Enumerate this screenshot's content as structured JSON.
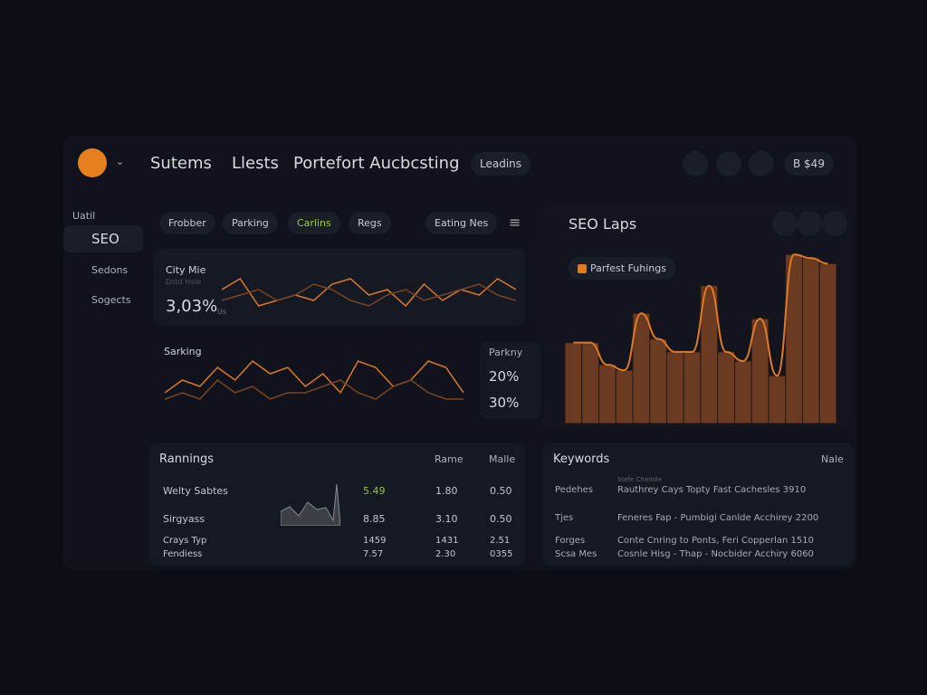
{
  "header": {
    "nav": [
      "Sutems",
      "Llests",
      "Portefort Aucbcsting"
    ],
    "badge": "Leadins",
    "account": "B $49"
  },
  "sidebar": {
    "section": "Uatil",
    "items": [
      "SEO",
      "Sedons",
      "Sogects"
    ]
  },
  "filters": [
    "Frobber",
    "Parking",
    "Carlins",
    "Regs",
    "Eating Nes"
  ],
  "cards": {
    "city": {
      "sub": "Dstd Hole",
      "value": "3,03%",
      "unit": "Us"
    },
    "parkny": {
      "title": "Parkny",
      "values": [
        "20%",
        "30%"
      ]
    }
  },
  "chart_data": [
    {
      "type": "line",
      "title": "City Mie",
      "ylim": [
        0,
        10
      ],
      "series": [
        {
          "color": "#d9792c",
          "values": [
            5,
            7,
            2,
            3,
            4,
            3,
            6,
            7,
            4,
            5,
            2,
            6,
            3,
            5,
            4,
            7,
            5
          ]
        },
        {
          "color": "#7a4522",
          "values": [
            3,
            4,
            5,
            3,
            4,
            6,
            5,
            3,
            2,
            4,
            5,
            3,
            4,
            5,
            6,
            4,
            3
          ]
        }
      ]
    },
    {
      "type": "line",
      "title": "Sarking",
      "ylim": [
        0,
        10
      ],
      "series": [
        {
          "color": "#d9792c",
          "values": [
            3,
            5,
            4,
            7,
            5,
            8,
            6,
            7,
            4,
            6,
            3,
            8,
            7,
            4,
            5,
            8,
            7,
            3
          ]
        },
        {
          "color": "#7a4522",
          "values": [
            2,
            3,
            2,
            5,
            3,
            4,
            2,
            3,
            3,
            4,
            5,
            3,
            2,
            4,
            5,
            3,
            2,
            2
          ]
        }
      ]
    },
    {
      "type": "bar",
      "title": "SEO Laps",
      "ylim": [
        0,
        10
      ],
      "series": [
        {
          "name": "Parfest Fuhings",
          "color": "#6b3a22",
          "values": [
            4.4,
            4.4,
            3.2,
            2.9,
            6.0,
            4.6,
            3.9,
            3.9,
            7.5,
            3.9,
            3.4,
            5.7,
            2.6,
            9.2,
            9.0,
            8.7
          ]
        }
      ]
    }
  ],
  "rankings": {
    "title": "Rannings",
    "columns": [
      "Rame",
      "Malle"
    ],
    "rows": [
      [
        "Welty Sabtes",
        "5.49",
        "1.80",
        "0.50"
      ],
      [
        "Sirgyass",
        "8.85",
        "3.10",
        "0.50"
      ],
      [
        "Crays Typ",
        "1459",
        "1431",
        "2.51"
      ],
      [
        "Fendiess",
        "7.57",
        "2.30",
        "0355"
      ]
    ]
  },
  "keywords": {
    "title": "Keywords",
    "column": "Nale",
    "subheader": "Stefe Chemile",
    "rows": [
      [
        "Pedehes",
        "Rauthrey Cays Topty Fast Cachesles 3910"
      ],
      [
        "Tjes",
        "Feneres Fap - Pumbigi Canlde Acchirey 2200"
      ],
      [
        "Forges",
        "Conte Cnring to Ponts, Feri Copperlan 1510"
      ],
      [
        "Scsa Mes",
        "Cosnle Hisg - Thap - Nocbider Acchiry 6060"
      ]
    ]
  }
}
